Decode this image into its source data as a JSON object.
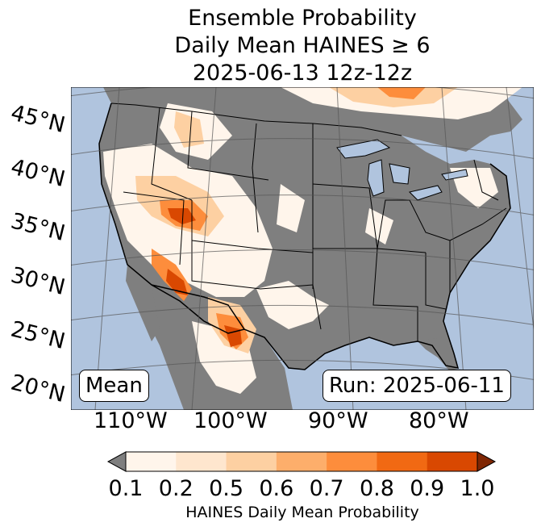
{
  "title": {
    "line1": "Ensemble Probability",
    "line2": "Daily Mean HAINES ≥ 6",
    "line3": "2025-06-13 12z-12z"
  },
  "latitude_labels": [
    "45°N",
    "40°N",
    "35°N",
    "30°N",
    "25°N",
    "20°N"
  ],
  "longitude_labels": [
    "110°W",
    "100°W",
    "90°W",
    "80°W"
  ],
  "badges": {
    "mean": "Mean",
    "run": "Run: 2025-06-11"
  },
  "colorbar": {
    "label": "HAINES Daily Mean Probability",
    "ticks": [
      "0.1",
      "0.2",
      "0.5",
      "0.6",
      "0.7",
      "0.8",
      "0.9",
      "1.0"
    ],
    "under_color": "#7f7f7f",
    "over_color": "#7f2704",
    "colors": [
      "#fff5eb",
      "#fee6ce",
      "#fdd0a2",
      "#fdae6b",
      "#fd8d3c",
      "#f16913",
      "#d94801"
    ]
  },
  "map_colors": {
    "ocean": "#b0c4de",
    "low_prob": "#7f7f7f",
    "land_fill": "#fff5eb"
  }
}
